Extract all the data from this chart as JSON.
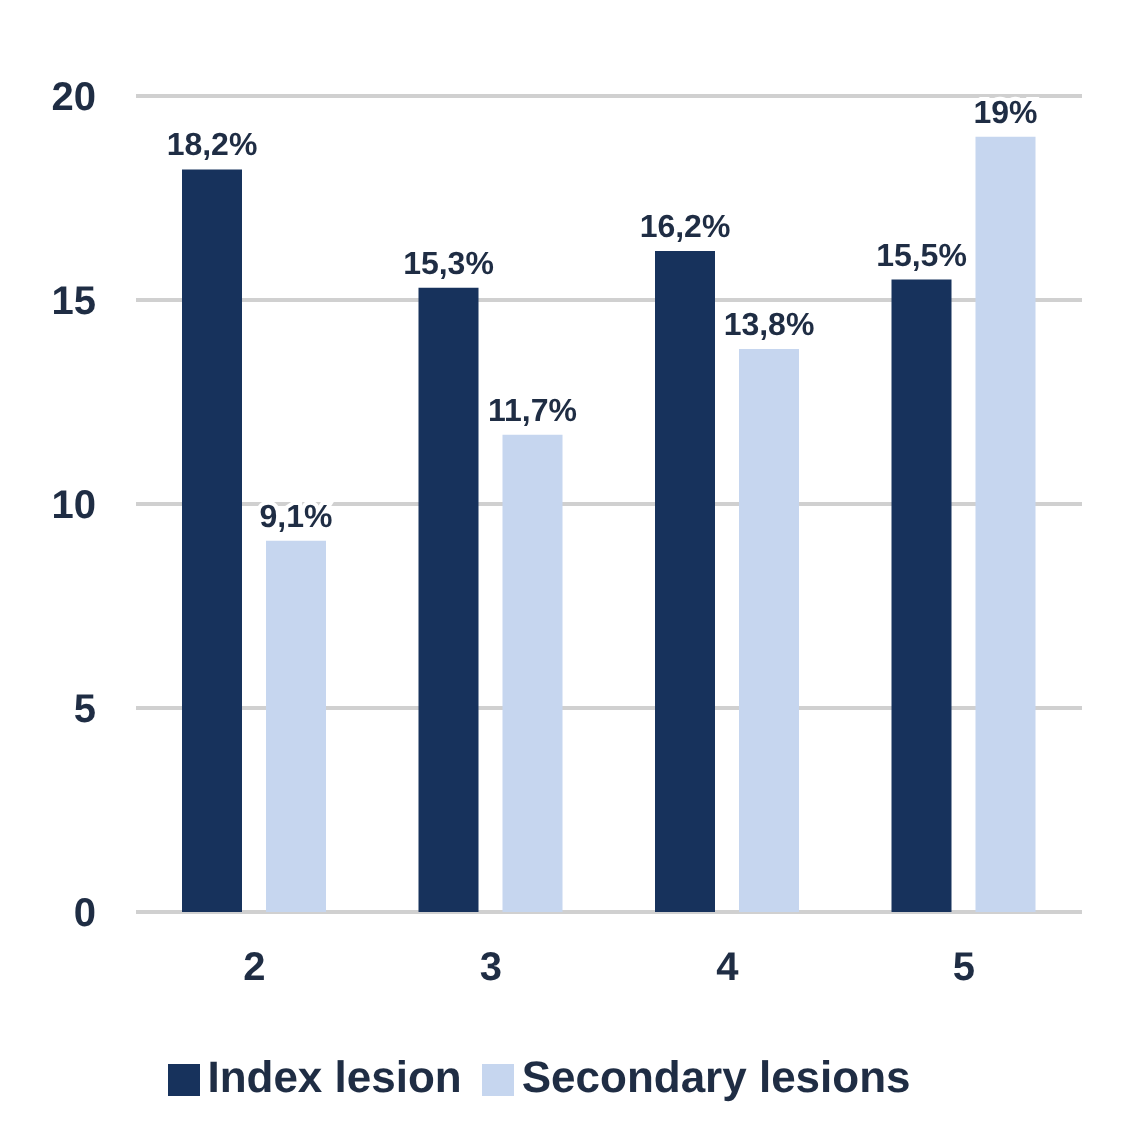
{
  "chart_data": {
    "type": "bar",
    "categories": [
      "2",
      "3",
      "4",
      "5"
    ],
    "series": [
      {
        "name": "Index lesion",
        "color": "#17325c",
        "values": [
          18.2,
          15.3,
          16.2,
          15.5
        ],
        "value_labels": [
          "18,2%",
          "15,3%",
          "16,2%",
          "15,5%"
        ]
      },
      {
        "name": "Secondary lesions",
        "color": "#c6d6ef",
        "values": [
          9.1,
          11.7,
          13.8,
          19
        ],
        "value_labels": [
          "9,1%",
          "11,7%",
          "13,8%",
          "19%"
        ]
      }
    ],
    "ylim": [
      0,
      20
    ],
    "yticks": [
      0,
      5,
      10,
      15,
      20
    ],
    "grid": "y",
    "legend": "bottom"
  }
}
